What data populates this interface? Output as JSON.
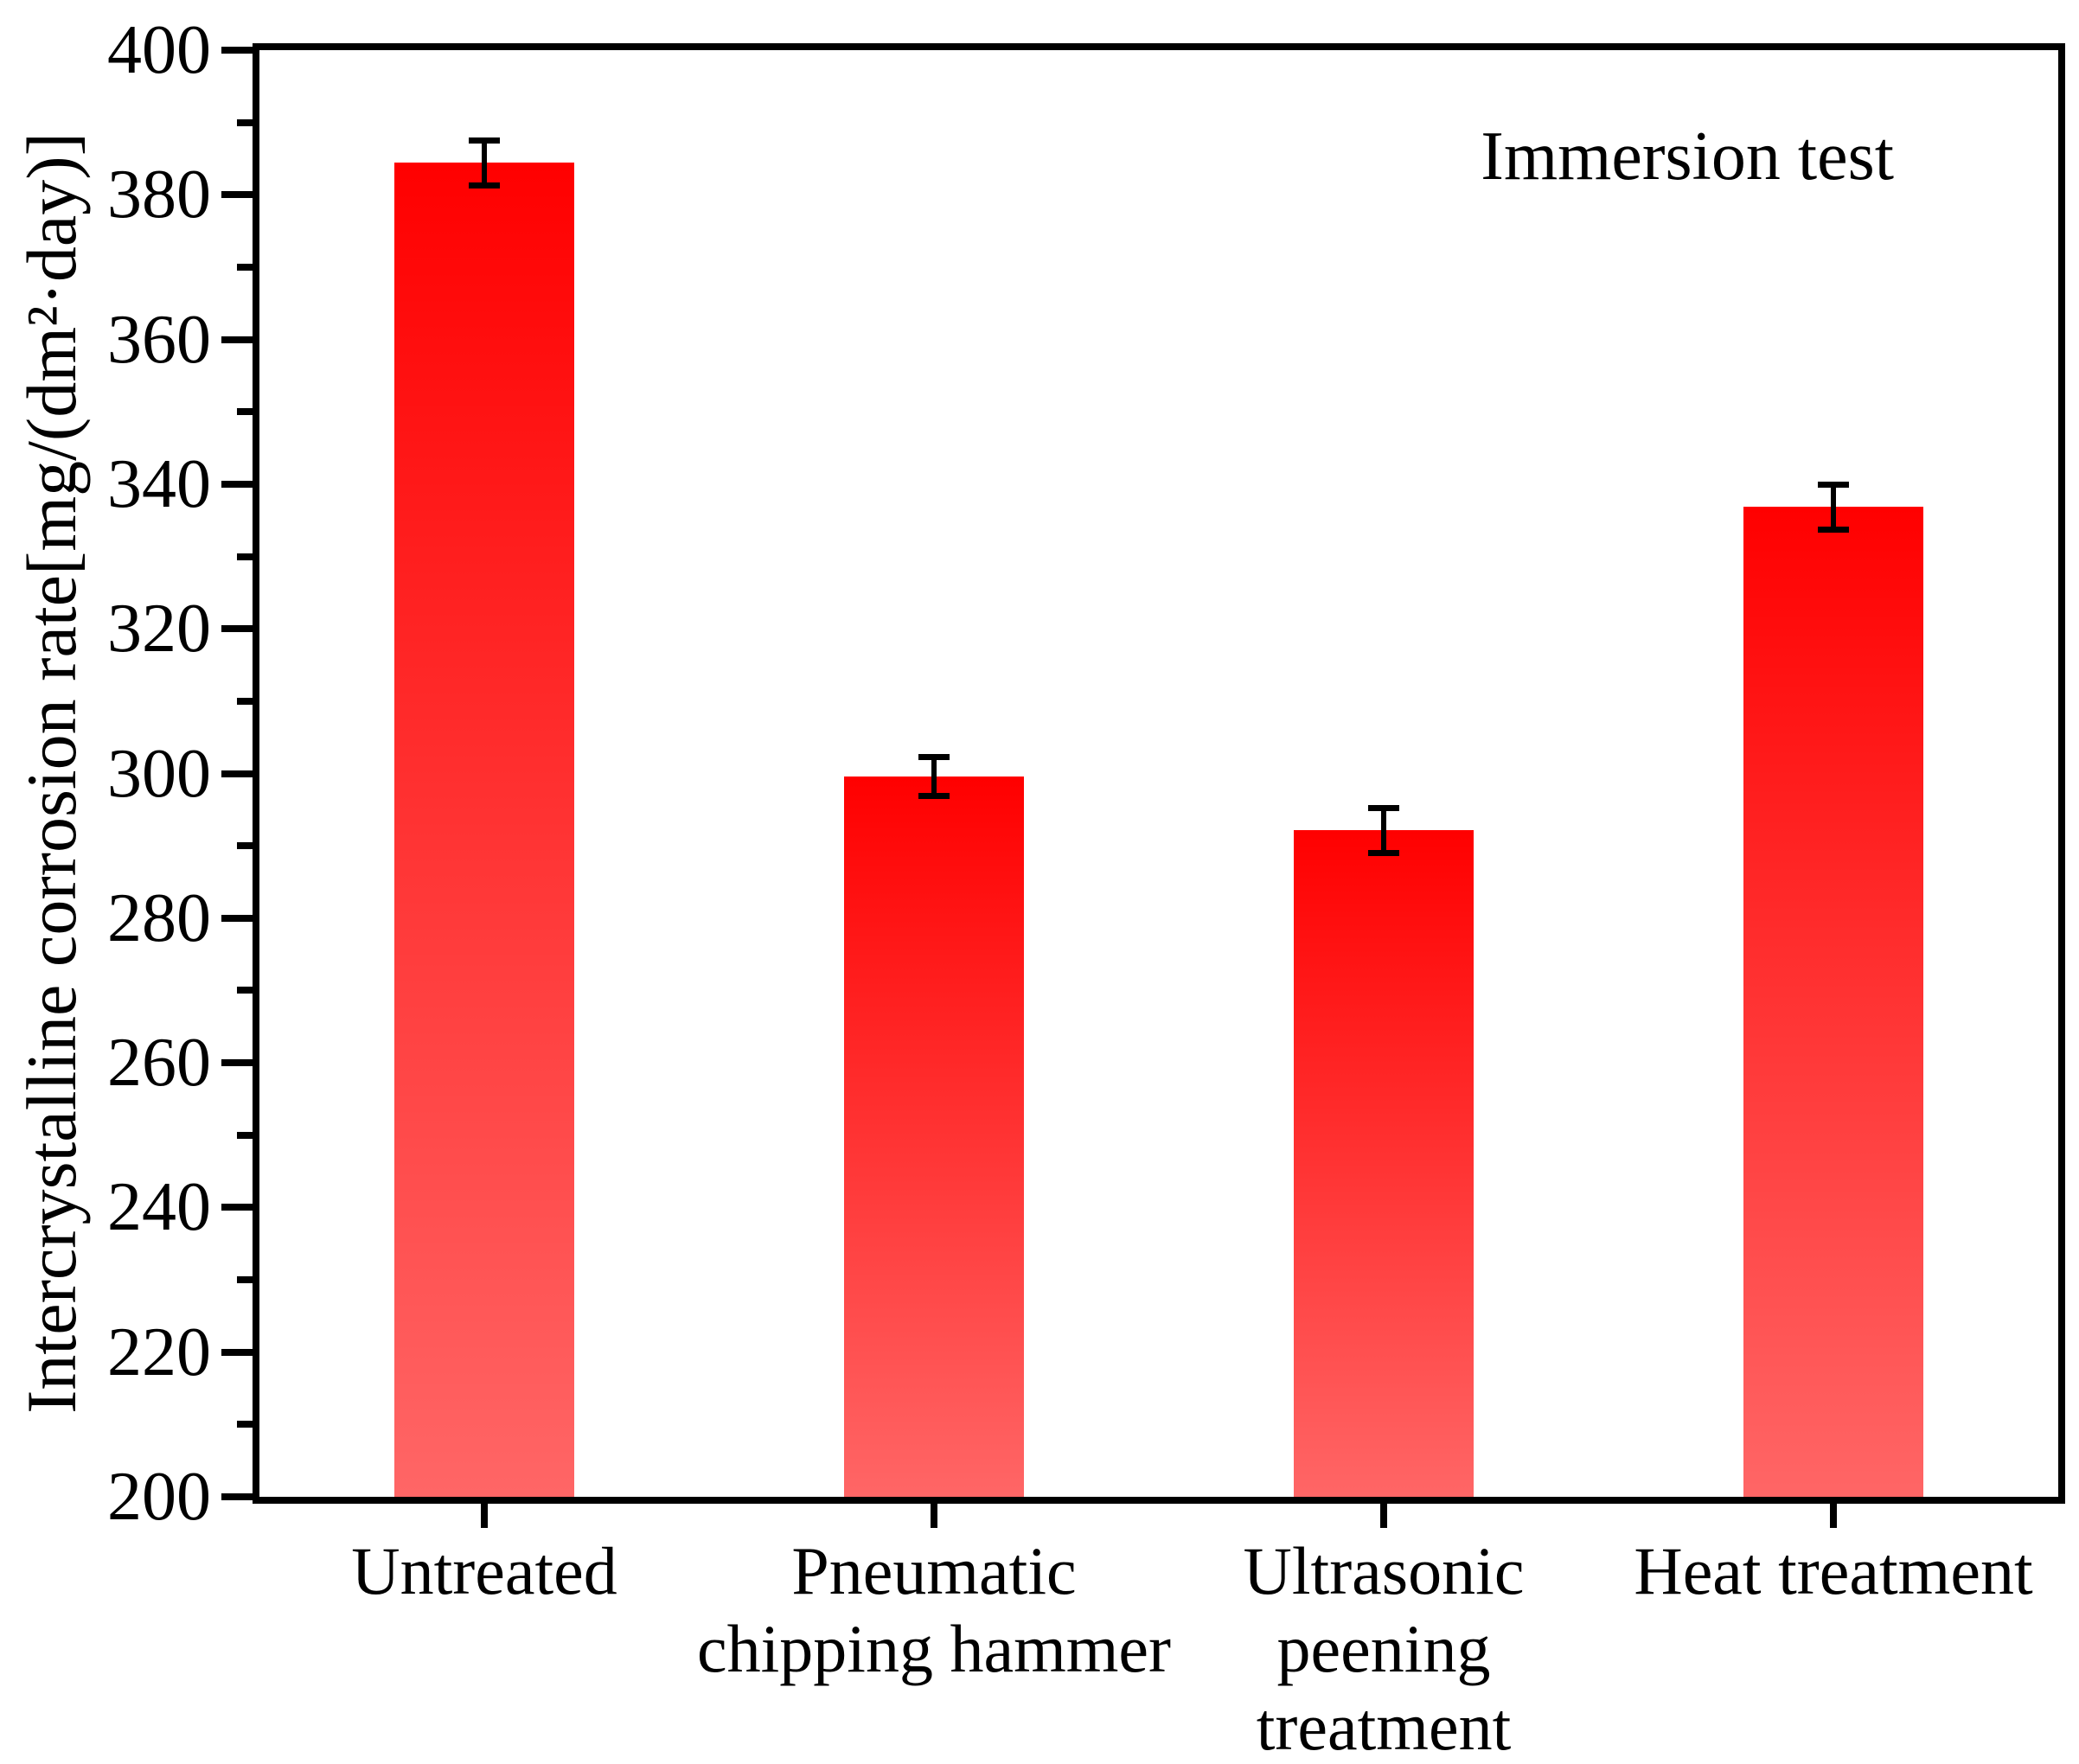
{
  "chart_data": {
    "type": "bar",
    "title": "Immersion test",
    "ylabel": "Intercrystalline corrosion rate[mg/(dm²·day)]",
    "xlabel": "",
    "categories": [
      "Untreated",
      "Pneumatic chipping hammer",
      "Ultrasonic peening treatment",
      "Heat treatment"
    ],
    "category_lines": [
      [
        "Untreated"
      ],
      [
        "Pneumatic",
        "chipping hammer"
      ],
      [
        "Ultrasonic",
        "peening",
        "treatment"
      ],
      [
        "Heat treatment"
      ]
    ],
    "values": [
      384.5,
      299.6,
      292.2,
      336.9
    ],
    "errors": [
      3.1,
      2.7,
      3.1,
      3.1
    ],
    "ylim": [
      200,
      400
    ],
    "yticks": [
      400,
      380,
      360,
      340,
      320,
      300,
      280,
      260,
      240,
      220,
      200
    ],
    "minor_yticks": [
      390,
      370,
      350,
      330,
      310,
      290,
      270,
      250,
      230,
      210
    ],
    "grid": false,
    "legend_position": "none",
    "error_caps": true,
    "colors": {
      "bar_top": "#ff0000",
      "bar_bottom": "#ff6666",
      "axis": "#000000",
      "text": "#000000",
      "background": "#ffffff"
    }
  }
}
